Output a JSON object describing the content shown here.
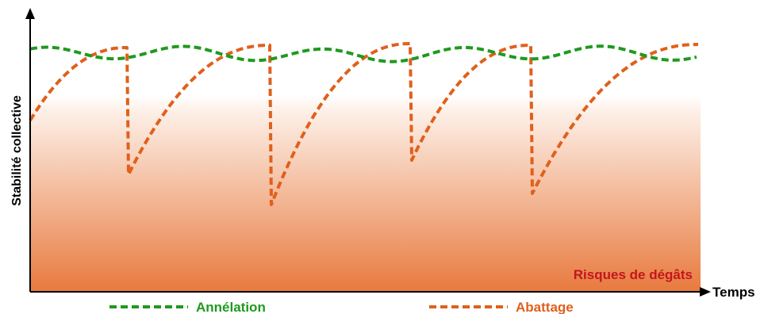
{
  "diagram": {
    "y_axis_label": "Stabilité collective",
    "x_axis_label": "Temps",
    "zone_label": "Risques de dégâts",
    "legend": [
      {
        "label": "Annélation",
        "color": "#1e9a1e"
      },
      {
        "label": "Abattage",
        "color": "#e0601c"
      }
    ],
    "colors": {
      "zone_bottom": "#e87a3e",
      "zone_label": "#c4161c",
      "axis": "#000000"
    }
  }
}
